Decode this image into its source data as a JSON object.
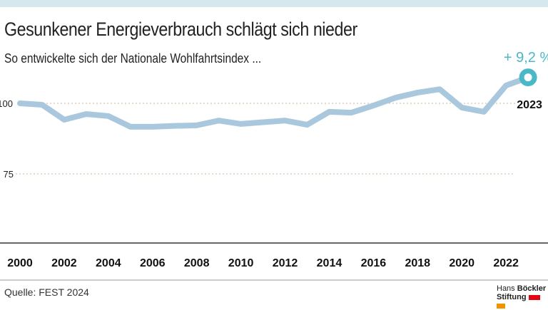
{
  "chart_data": {
    "type": "line",
    "title": "Gesunkener Energieverbrauch schlägt sich nieder",
    "subtitle": "So entwickelte sich der Nationale Wohlfahrtsindex ...",
    "x": [
      2000,
      2001,
      2002,
      2003,
      2004,
      2005,
      2006,
      2007,
      2008,
      2009,
      2010,
      2011,
      2012,
      2013,
      2014,
      2015,
      2016,
      2017,
      2018,
      2019,
      2020,
      2021,
      2022,
      2023
    ],
    "values": [
      100,
      99.5,
      94.2,
      96.2,
      95.5,
      91.7,
      91.7,
      92.0,
      92.2,
      93.9,
      92.7,
      93.3,
      93.9,
      92.4,
      97.0,
      96.7,
      99.2,
      102.0,
      103.8,
      105.0,
      98.5,
      97.0,
      106.3,
      109.2
    ],
    "xticks": [
      "2000",
      "2002",
      "2004",
      "2006",
      "2008",
      "2010",
      "2012",
      "2014",
      "2016",
      "2018",
      "2020",
      "2022"
    ],
    "yticks": [
      "100",
      "75"
    ],
    "ylim": [
      49,
      112
    ],
    "annotation_value": "+ 9,2 %",
    "annotation_year": "2023",
    "line_color": "#a9c8de",
    "accent_color": "#4bb8c8",
    "grid": "dotted horizontal at 100 and 75"
  },
  "source": "Quelle: FEST 2024",
  "logo": {
    "line1a": "Hans ",
    "line1b": "Böckler",
    "line2": "Stiftung"
  }
}
